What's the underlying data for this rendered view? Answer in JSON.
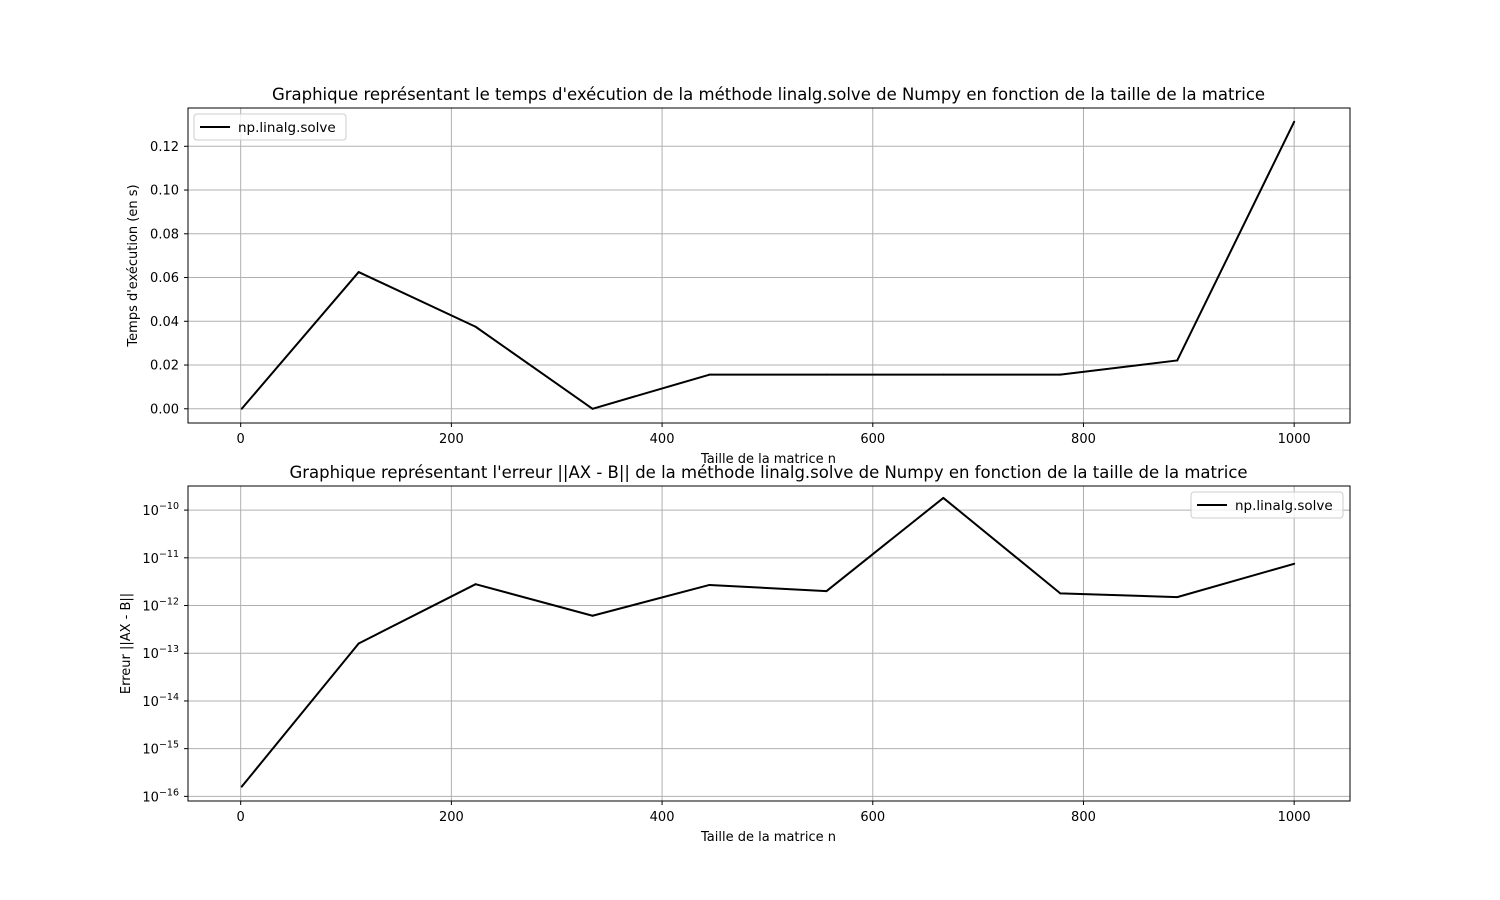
{
  "chart_data": [
    {
      "type": "line",
      "title": "Graphique représentant le temps d'exécution de la méthode linalg.solve de Numpy en fonction de la taille de la matrice",
      "xlabel": "Taille de la matrice n",
      "ylabel": "Temps d'exécution (en s)",
      "xlim": [
        -50,
        1053
      ],
      "ylim": [
        -0.0065,
        0.1375
      ],
      "yscale": "linear",
      "grid": true,
      "legend_position": "upper-left",
      "x_ticks": [
        0,
        200,
        400,
        600,
        800,
        1000
      ],
      "x_tick_labels": [
        "0",
        "200",
        "400",
        "600",
        "800",
        "1000"
      ],
      "y_ticks": [
        0.0,
        0.02,
        0.04,
        0.06,
        0.08,
        0.1,
        0.12
      ],
      "y_tick_labels": [
        "0.00",
        "0.02",
        "0.04",
        "0.06",
        "0.08",
        "0.10",
        "0.12"
      ],
      "series": [
        {
          "name": "np.linalg.solve",
          "color": "#000000",
          "x": [
            1,
            112,
            223,
            334,
            445,
            556,
            667,
            778,
            889,
            1000
          ],
          "y": [
            0.0,
            0.0625,
            0.0375,
            0.0,
            0.0156,
            0.0156,
            0.0156,
            0.0156,
            0.0221,
            0.1312
          ]
        }
      ]
    },
    {
      "type": "line",
      "title": "Graphique représentant l'erreur ||AX - B|| de la méthode linalg.solve de Numpy en fonction de la taille de la matrice",
      "xlabel": "Taille de la matrice n",
      "ylabel": "Erreur ||AX - B||",
      "xlim": [
        -50,
        1053
      ],
      "ylim": [
        8e-17,
        3.2e-10
      ],
      "yscale": "log",
      "grid": true,
      "legend_position": "upper-right",
      "x_ticks": [
        0,
        200,
        400,
        600,
        800,
        1000
      ],
      "x_tick_labels": [
        "0",
        "200",
        "400",
        "600",
        "800",
        "1000"
      ],
      "y_ticks": [
        1e-16,
        1e-15,
        1e-14,
        1e-13,
        1e-12,
        1e-11,
        1e-10
      ],
      "y_tick_labels": [
        {
          "base": "10",
          "exp": "−16"
        },
        {
          "base": "10",
          "exp": "−15"
        },
        {
          "base": "10",
          "exp": "−14"
        },
        {
          "base": "10",
          "exp": "−13"
        },
        {
          "base": "10",
          "exp": "−12"
        },
        {
          "base": "10",
          "exp": "−11"
        },
        {
          "base": "10",
          "exp": "−10"
        }
      ],
      "series": [
        {
          "name": "np.linalg.solve",
          "color": "#000000",
          "x": [
            1,
            112,
            223,
            334,
            445,
            556,
            667,
            778,
            889,
            1000
          ],
          "y": [
            1.6e-16,
            1.6e-13,
            2.8e-12,
            6.1e-13,
            2.7e-12,
            2e-12,
            1.8e-10,
            1.8e-12,
            1.5e-12,
            7.5e-12
          ]
        }
      ]
    }
  ]
}
